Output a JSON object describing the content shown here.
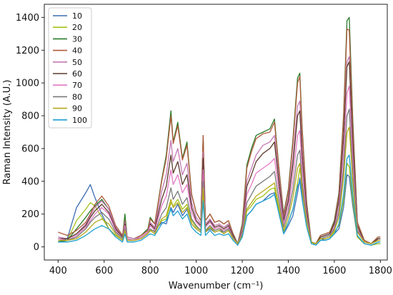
{
  "chart_data": {
    "type": "line",
    "xlabel": "Wavenumber (cm⁻¹)",
    "ylabel": "Raman Intensity (A.U.)",
    "xlim": [
      340,
      1830
    ],
    "ylim": [
      -80,
      1480
    ],
    "xticks": [
      400,
      600,
      800,
      1000,
      1200,
      1400,
      1600,
      1800
    ],
    "yticks": [
      0,
      200,
      400,
      600,
      800,
      1000,
      1200,
      1400
    ],
    "grid": false,
    "legend_position": "top-left",
    "x": [
      400,
      440,
      480,
      520,
      540,
      560,
      590,
      620,
      650,
      680,
      690,
      700,
      730,
      760,
      790,
      800,
      820,
      850,
      870,
      890,
      900,
      920,
      940,
      960,
      980,
      1000,
      1020,
      1030,
      1040,
      1060,
      1080,
      1100,
      1120,
      1140,
      1160,
      1180,
      1200,
      1220,
      1240,
      1260,
      1290,
      1320,
      1340,
      1360,
      1380,
      1400,
      1420,
      1440,
      1450,
      1460,
      1480,
      1500,
      1520,
      1540,
      1560,
      1580,
      1600,
      1620,
      1640,
      1655,
      1665,
      1680,
      1700,
      1730,
      1760,
      1790,
      1800
    ],
    "series": [
      {
        "name": "10",
        "color": "#3b6db3",
        "values": [
          30,
          50,
          240,
          330,
          380,
          300,
          200,
          110,
          70,
          40,
          120,
          40,
          40,
          60,
          90,
          100,
          100,
          150,
          140,
          240,
          210,
          260,
          190,
          230,
          140,
          110,
          90,
          300,
          90,
          110,
          90,
          100,
          90,
          110,
          70,
          20,
          60,
          190,
          220,
          260,
          280,
          320,
          330,
          200,
          80,
          130,
          190,
          330,
          420,
          330,
          160,
          20,
          20,
          50,
          40,
          50,
          80,
          110,
          240,
          440,
          430,
          250,
          60,
          20,
          10,
          20,
          20
        ]
      },
      {
        "name": "20",
        "color": "#a3c21a",
        "values": [
          30,
          40,
          160,
          230,
          270,
          250,
          180,
          110,
          70,
          40,
          110,
          40,
          40,
          60,
          90,
          100,
          100,
          160,
          170,
          270,
          250,
          290,
          230,
          260,
          160,
          120,
          100,
          330,
          100,
          120,
          100,
          110,
          100,
          120,
          70,
          20,
          70,
          220,
          250,
          290,
          310,
          350,
          360,
          220,
          90,
          150,
          230,
          390,
          480,
          380,
          170,
          20,
          20,
          50,
          50,
          60,
          90,
          130,
          280,
          510,
          490,
          280,
          60,
          20,
          10,
          20,
          20
        ]
      },
      {
        "name": "30",
        "color": "#2a7a2a",
        "values": [
          30,
          40,
          110,
          180,
          220,
          250,
          290,
          230,
          120,
          60,
          200,
          60,
          50,
          70,
          110,
          180,
          140,
          410,
          560,
          830,
          640,
          760,
          540,
          640,
          320,
          210,
          160,
          680,
          160,
          200,
          150,
          160,
          140,
          160,
          80,
          20,
          140,
          500,
          600,
          680,
          700,
          720,
          780,
          470,
          200,
          350,
          650,
          1030,
          1060,
          730,
          270,
          30,
          20,
          70,
          80,
          90,
          160,
          330,
          800,
          1380,
          1400,
          780,
          150,
          40,
          20,
          60,
          60
        ]
      },
      {
        "name": "40",
        "color": "#b05a3a",
        "values": [
          90,
          70,
          100,
          150,
          200,
          260,
          310,
          250,
          130,
          70,
          160,
          60,
          50,
          70,
          100,
          170,
          140,
          400,
          540,
          800,
          630,
          740,
          530,
          620,
          320,
          210,
          160,
          680,
          160,
          200,
          150,
          160,
          140,
          160,
          80,
          20,
          130,
          480,
          580,
          660,
          690,
          700,
          760,
          460,
          190,
          340,
          630,
          1000,
          1040,
          710,
          260,
          30,
          20,
          70,
          80,
          90,
          150,
          320,
          780,
          1330,
          1320,
          740,
          150,
          40,
          20,
          60,
          60
        ]
      },
      {
        "name": "50",
        "color": "#c27ab4",
        "values": [
          60,
          50,
          80,
          140,
          190,
          240,
          280,
          230,
          120,
          60,
          150,
          60,
          50,
          60,
          90,
          150,
          120,
          340,
          440,
          650,
          520,
          600,
          440,
          510,
          270,
          180,
          140,
          580,
          140,
          170,
          130,
          140,
          120,
          140,
          70,
          20,
          110,
          400,
          480,
          560,
          620,
          640,
          680,
          410,
          170,
          300,
          540,
          860,
          890,
          600,
          230,
          30,
          20,
          60,
          70,
          80,
          140,
          290,
          680,
          1130,
          1160,
          650,
          130,
          30,
          20,
          50,
          50
        ]
      },
      {
        "name": "60",
        "color": "#5a3a2a",
        "values": [
          50,
          50,
          80,
          130,
          180,
          220,
          260,
          210,
          110,
          60,
          140,
          50,
          40,
          60,
          90,
          140,
          110,
          290,
          370,
          560,
          450,
          520,
          380,
          440,
          240,
          160,
          130,
          540,
          130,
          160,
          120,
          130,
          110,
          130,
          70,
          20,
          100,
          370,
          440,
          520,
          570,
          600,
          640,
          380,
          160,
          280,
          500,
          800,
          830,
          560,
          220,
          30,
          20,
          60,
          70,
          80,
          140,
          280,
          660,
          1100,
          1130,
          630,
          130,
          30,
          20,
          50,
          50
        ]
      },
      {
        "name": "70",
        "color": "#e37ac4",
        "values": [
          50,
          40,
          70,
          120,
          160,
          200,
          240,
          200,
          100,
          50,
          130,
          50,
          40,
          60,
          90,
          130,
          100,
          250,
          310,
          470,
          380,
          440,
          330,
          380,
          210,
          150,
          120,
          470,
          120,
          150,
          110,
          120,
          100,
          120,
          60,
          20,
          90,
          320,
          380,
          450,
          480,
          510,
          540,
          330,
          140,
          240,
          420,
          680,
          710,
          480,
          190,
          30,
          20,
          50,
          60,
          70,
          120,
          240,
          560,
          940,
          980,
          540,
          110,
          30,
          20,
          40,
          40
        ]
      },
      {
        "name": "80",
        "color": "#7a7a7a",
        "values": [
          40,
          40,
          60,
          110,
          150,
          180,
          210,
          170,
          90,
          50,
          110,
          40,
          40,
          50,
          80,
          110,
          90,
          200,
          240,
          360,
          290,
          340,
          260,
          300,
          170,
          130,
          100,
          400,
          100,
          130,
          100,
          110,
          90,
          110,
          60,
          20,
          80,
          270,
          320,
          370,
          400,
          430,
          460,
          280,
          120,
          210,
          350,
          560,
          590,
          400,
          170,
          30,
          20,
          50,
          60,
          70,
          110,
          210,
          480,
          800,
          840,
          460,
          100,
          30,
          20,
          40,
          40
        ]
      },
      {
        "name": "90",
        "color": "#b5a81a",
        "values": [
          40,
          40,
          50,
          90,
          120,
          150,
          170,
          140,
          80,
          40,
          100,
          40,
          40,
          50,
          80,
          100,
          80,
          170,
          190,
          290,
          240,
          270,
          210,
          240,
          140,
          110,
          90,
          360,
          90,
          120,
          90,
          100,
          80,
          100,
          50,
          20,
          70,
          230,
          270,
          310,
          340,
          370,
          390,
          240,
          100,
          180,
          300,
          480,
          510,
          350,
          150,
          30,
          20,
          50,
          50,
          60,
          100,
          180,
          420,
          700,
          730,
          400,
          90,
          30,
          20,
          40,
          40
        ]
      },
      {
        "name": "100",
        "color": "#1f9fd0",
        "values": [
          30,
          30,
          40,
          70,
          90,
          110,
          130,
          110,
          60,
          30,
          80,
          30,
          30,
          40,
          70,
          80,
          70,
          140,
          160,
          230,
          190,
          220,
          170,
          200,
          120,
          90,
          70,
          280,
          70,
          100,
          70,
          80,
          70,
          80,
          40,
          10,
          60,
          190,
          220,
          260,
          280,
          300,
          320,
          200,
          80,
          150,
          230,
          370,
          400,
          290,
          120,
          20,
          10,
          40,
          40,
          50,
          80,
          140,
          320,
          540,
          560,
          320,
          70,
          20,
          10,
          30,
          30
        ]
      }
    ]
  }
}
